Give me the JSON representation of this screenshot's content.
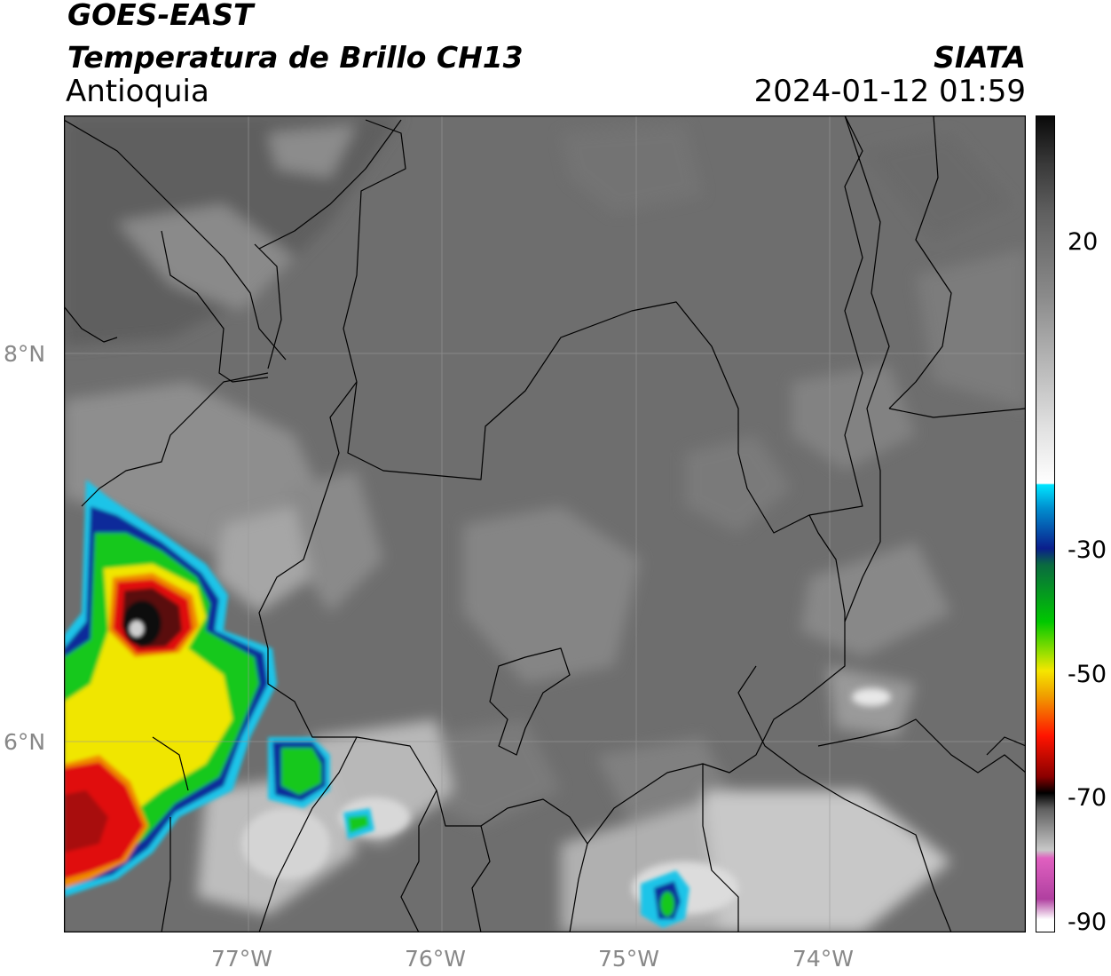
{
  "header": {
    "satellite": "GOES-EAST",
    "product": "Temperatura de Brillo CH13",
    "region": "Antioquia",
    "organization": "SIATA",
    "datetime": "2024-01-12 01:59"
  },
  "map": {
    "lat_labels": [
      "8°N",
      "6°N"
    ],
    "lon_labels": [
      "77°W",
      "76°W",
      "75°W",
      "74°W"
    ],
    "colors": {
      "base_gray": "#6e6e6e",
      "warm_gray": "#626262",
      "cool_gray": "#9a9a9a",
      "cloud_white": "#e8e8e8",
      "cyan": "#1fc4e8",
      "blue": "#0a2a9a",
      "green": "#14c81e",
      "yellow": "#f0e600",
      "orange": "#f08a00",
      "red": "#e01010",
      "dark_red": "#5a0a0a",
      "black": "#0a0a0a",
      "border": "#000000",
      "grid": "#9a9a9a"
    }
  },
  "colorbar": {
    "tick_labels": [
      "20",
      "-30",
      "-50",
      "-70",
      "-90"
    ],
    "unit_colors": [
      "#000000",
      "#ffffff",
      "#00e5ff",
      "#0a1e8c",
      "#00c800",
      "#f5e600",
      "#ff1400",
      "#000000",
      "#e060c0"
    ]
  }
}
